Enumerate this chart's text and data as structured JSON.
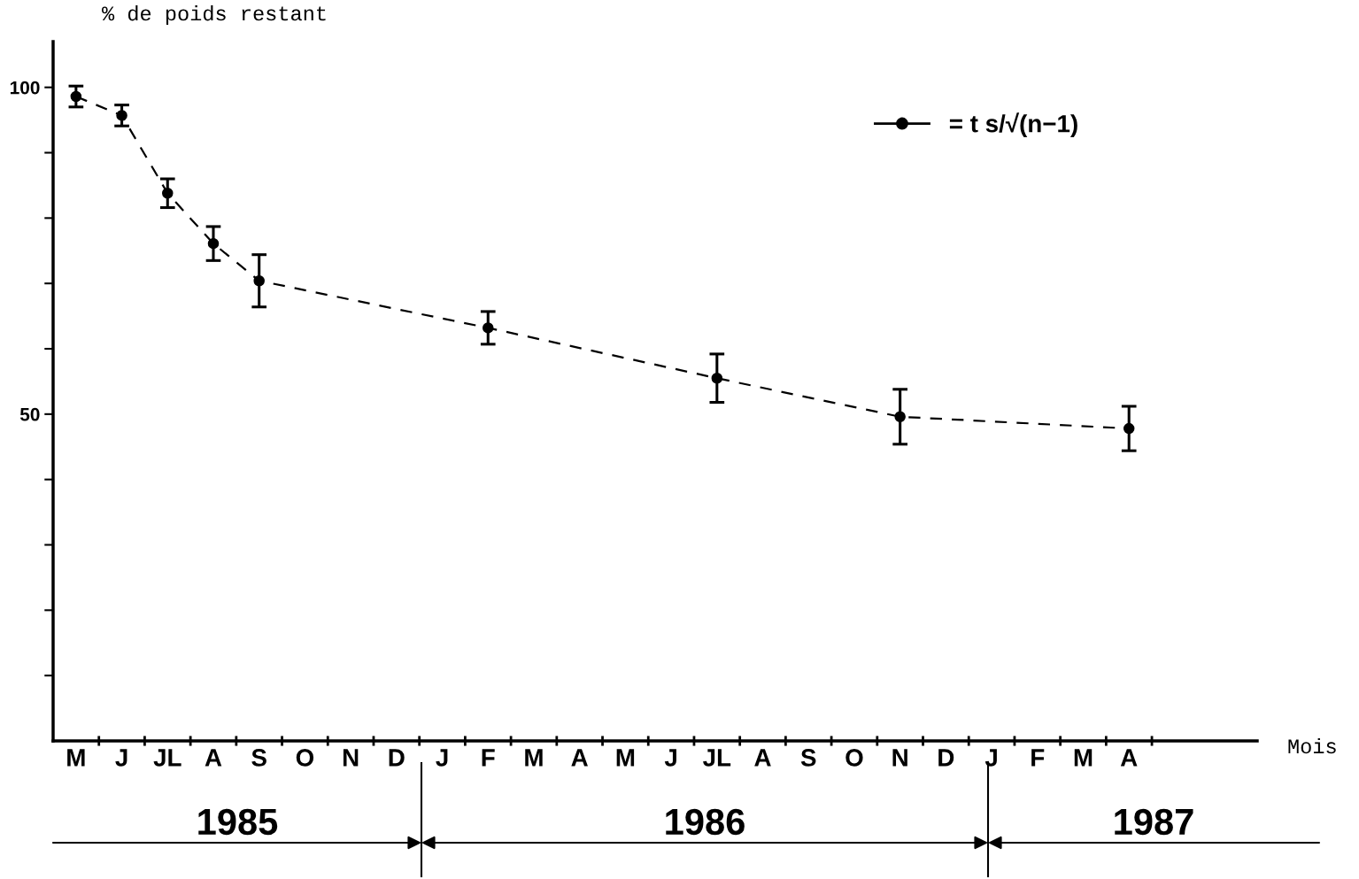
{
  "chart_data": {
    "type": "line",
    "ylabel": "% de poids restant",
    "categories": [
      "M",
      "J",
      "JL",
      "A",
      "S",
      "O",
      "N",
      "D",
      "J",
      "F",
      "M",
      "A",
      "M",
      "J",
      "JL",
      "A",
      "S",
      "O",
      "N",
      "D",
      "J",
      "F",
      "M",
      "A"
    ],
    "series": [
      {
        "name": "= t s/√(n−1)",
        "color": "#000000",
        "values": [
          98.6,
          95.7,
          83.8,
          76.1,
          70.4,
          null,
          null,
          null,
          null,
          63.2,
          null,
          null,
          null,
          null,
          55.5,
          null,
          null,
          null,
          49.6,
          null,
          null,
          null,
          null,
          47.8
        ],
        "errors": [
          1.6,
          1.6,
          2.2,
          2.6,
          4.0,
          null,
          null,
          null,
          null,
          2.5,
          null,
          null,
          null,
          null,
          3.7,
          null,
          null,
          null,
          4.2,
          null,
          null,
          null,
          null,
          3.4
        ]
      }
    ],
    "marker": "circle",
    "line_style": "dashed",
    "ylim": [
      0,
      107
    ],
    "yticks": [
      {
        "value": 10,
        "label": null
      },
      {
        "value": 20,
        "label": null
      },
      {
        "value": 30,
        "label": null
      },
      {
        "value": 40,
        "label": null
      },
      50,
      {
        "value": 60,
        "label": null
      },
      {
        "value": 70,
        "label": null
      },
      {
        "value": 80,
        "label": null
      },
      {
        "value": 90,
        "label": null
      },
      100
    ],
    "annotations": [
      "Mois",
      "1985",
      "1986",
      "1987"
    ],
    "grid": false,
    "legend": "top right"
  }
}
